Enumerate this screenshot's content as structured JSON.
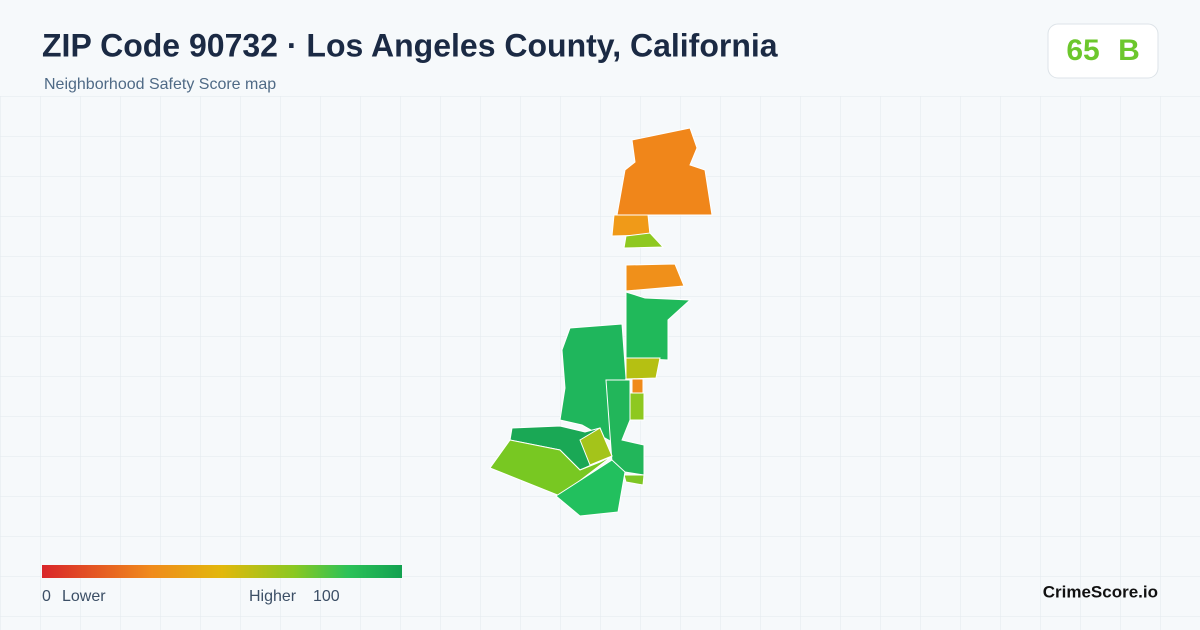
{
  "header": {
    "title": "ZIP Code 90732 · Los Angeles County, California",
    "subtitle": "Neighborhood Safety Score map"
  },
  "score": {
    "value": "65",
    "grade": "B"
  },
  "legend": {
    "min": "0",
    "min_label": "Lower",
    "max_label": "Higher",
    "max": "100"
  },
  "footer": {
    "brand": "CrimeScore.io"
  }
}
